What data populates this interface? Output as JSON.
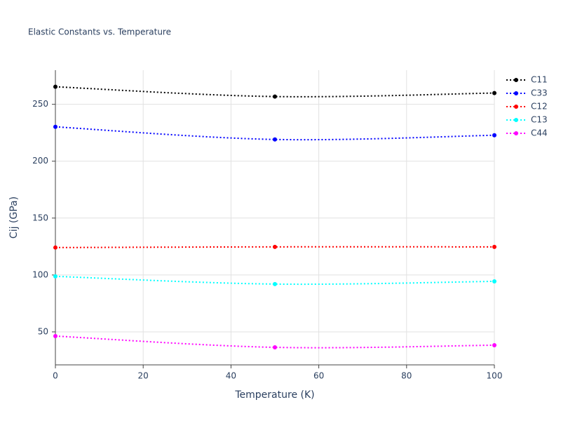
{
  "chart_data": {
    "type": "line",
    "title": "Elastic Constants vs. Temperature",
    "x_label": "Temperature (K)",
    "y_label": "Cij (GPa)",
    "x": [
      0,
      50,
      100
    ],
    "series": [
      {
        "name": "C11",
        "color": "#000000",
        "values": [
          265.4,
          256.8,
          259.9
        ]
      },
      {
        "name": "C33",
        "color": "#0000ff",
        "values": [
          230.2,
          219.1,
          222.8
        ]
      },
      {
        "name": "C12",
        "color": "#ff0000",
        "values": [
          124.1,
          124.7,
          124.7
        ]
      },
      {
        "name": "C13",
        "color": "#00ffff",
        "values": [
          98.8,
          92.0,
          94.4
        ]
      },
      {
        "name": "C44",
        "color": "#ff00ff",
        "values": [
          46.3,
          36.4,
          38.3
        ]
      }
    ],
    "xlim": [
      0,
      100
    ],
    "xticks": [
      0,
      20,
      40,
      60,
      80,
      100
    ],
    "ylim": [
      21,
      280
    ],
    "yticks": [
      50,
      100,
      150,
      200,
      250
    ],
    "grid": true,
    "legend": "right"
  }
}
